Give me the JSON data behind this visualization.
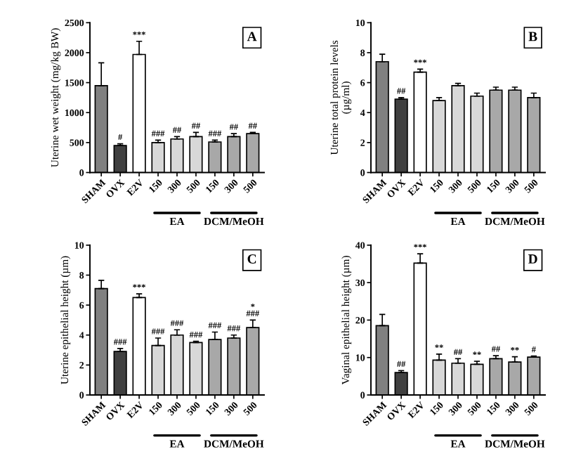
{
  "chart_data": [
    {
      "type": "bar",
      "title": "A",
      "ylabel": "Uterine wet weight (mg/kg BW)",
      "categories": [
        "SHAM",
        "OVX",
        "E2V",
        "150",
        "300",
        "500",
        "150",
        "300",
        "500"
      ],
      "colors": [
        "#808080",
        "#404040",
        "#ffffff",
        "#d8d8d8",
        "#d8d8d8",
        "#d8d8d8",
        "#a8a8a8",
        "#a8a8a8",
        "#a8a8a8"
      ],
      "values": [
        1450,
        450,
        1970,
        500,
        560,
        600,
        510,
        600,
        650
      ],
      "errors": [
        380,
        30,
        220,
        40,
        40,
        70,
        30,
        50,
        20
      ],
      "value_labels": [
        null,
        "#",
        "***",
        "###",
        "##",
        "##",
        "###",
        "##",
        "##"
      ],
      "annotations": [
        "EA",
        "DCM/MeOH"
      ],
      "ylim": [
        0,
        2500
      ],
      "yticks": [
        0,
        500,
        1000,
        1500,
        2000,
        2500
      ],
      "grid": false,
      "legend": false
    },
    {
      "type": "bar",
      "title": "B",
      "ylabel": "Uterine total protein levels\n(µg/ml)",
      "categories": [
        "SHAM",
        "OVX",
        "E2V",
        "150",
        "300",
        "500",
        "150",
        "300",
        "500"
      ],
      "colors": [
        "#808080",
        "#404040",
        "#ffffff",
        "#d8d8d8",
        "#d8d8d8",
        "#d8d8d8",
        "#a8a8a8",
        "#a8a8a8",
        "#a8a8a8"
      ],
      "values": [
        7.4,
        4.9,
        6.7,
        4.8,
        5.8,
        5.1,
        5.5,
        5.5,
        5.0
      ],
      "errors": [
        0.5,
        0.1,
        0.2,
        0.2,
        0.15,
        0.2,
        0.2,
        0.2,
        0.3
      ],
      "value_labels": [
        null,
        "##",
        "***",
        null,
        null,
        null,
        null,
        null,
        null
      ],
      "annotations": [
        "EA",
        "DCM/MeOH"
      ],
      "ylim": [
        0,
        10
      ],
      "yticks": [
        0,
        2,
        4,
        6,
        8,
        10
      ],
      "grid": false,
      "legend": false
    },
    {
      "type": "bar",
      "title": "C",
      "ylabel": "Uterine epithelial height (µm)",
      "categories": [
        "SHAM",
        "OVX",
        "E2V",
        "150",
        "300",
        "500",
        "150",
        "300",
        "500"
      ],
      "colors": [
        "#808080",
        "#404040",
        "#ffffff",
        "#d8d8d8",
        "#d8d8d8",
        "#d8d8d8",
        "#a8a8a8",
        "#a8a8a8",
        "#a8a8a8"
      ],
      "values": [
        7.1,
        2.9,
        6.5,
        3.3,
        4.0,
        3.5,
        3.7,
        3.8,
        4.5
      ],
      "errors": [
        0.55,
        0.2,
        0.25,
        0.5,
        0.35,
        0.08,
        0.5,
        0.2,
        0.5
      ],
      "value_labels": [
        null,
        "###",
        "***",
        "###",
        "###",
        "###",
        "###",
        "###",
        "*\n###"
      ],
      "annotations": [
        "EA",
        "DCM/MeOH"
      ],
      "ylim": [
        0,
        10
      ],
      "yticks": [
        0,
        2,
        4,
        6,
        8,
        10
      ],
      "grid": false,
      "legend": false
    },
    {
      "type": "bar",
      "title": "D",
      "ylabel": "Vaginal epithelial height (µm)",
      "categories": [
        "SHAM",
        "OVX",
        "E2V",
        "150",
        "300",
        "500",
        "150",
        "300",
        "500"
      ],
      "colors": [
        "#808080",
        "#404040",
        "#ffffff",
        "#d8d8d8",
        "#d8d8d8",
        "#d8d8d8",
        "#a8a8a8",
        "#a8a8a8",
        "#a8a8a8"
      ],
      "values": [
        18.5,
        6.0,
        35.2,
        9.3,
        8.5,
        8.2,
        9.7,
        8.8,
        10.1
      ],
      "errors": [
        3,
        0.5,
        2.5,
        1.6,
        1.2,
        0.8,
        0.8,
        1.4,
        0.3
      ],
      "value_labels": [
        null,
        "##",
        "***",
        "**",
        "##",
        "**",
        "##",
        "**",
        "#"
      ],
      "annotations": [
        "EA",
        "DCM/MeOH"
      ],
      "ylim": [
        0,
        40
      ],
      "yticks": [
        0,
        10,
        20,
        30,
        40
      ],
      "grid": false,
      "legend": false
    }
  ]
}
